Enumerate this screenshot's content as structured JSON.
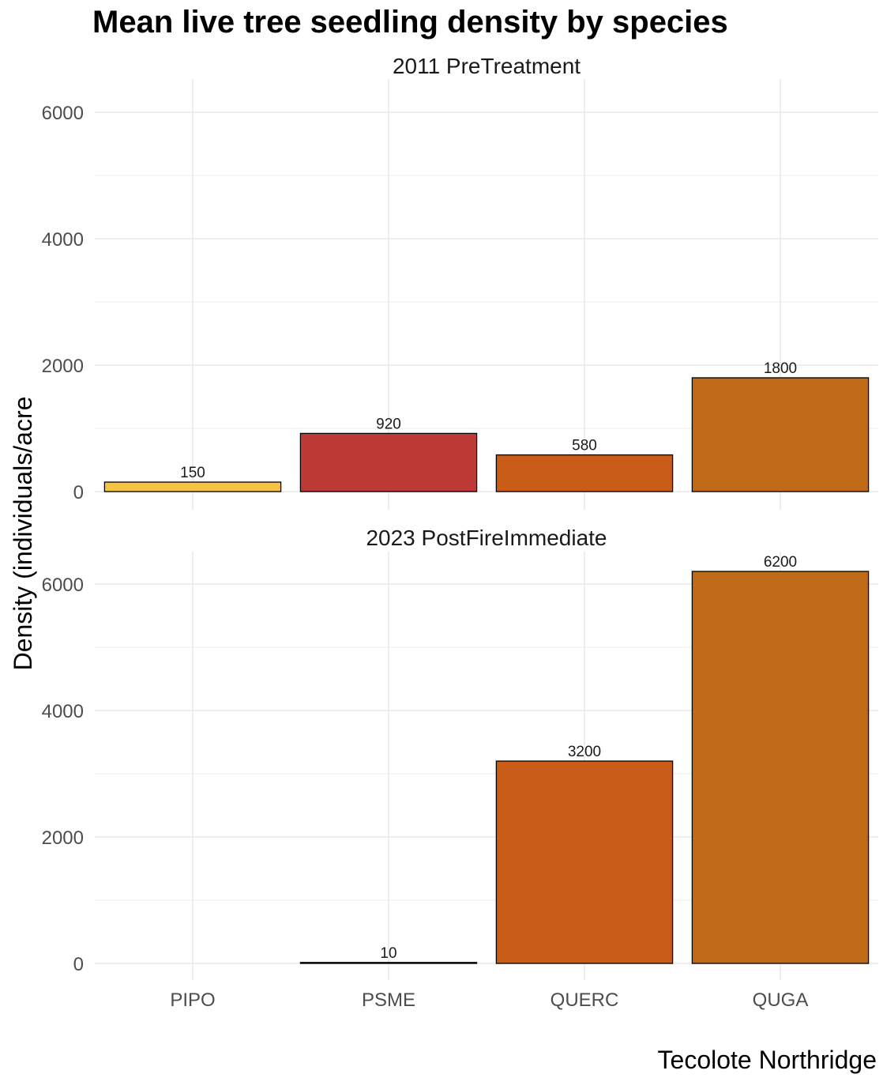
{
  "title": "Mean live tree seedling density by species",
  "chart_data": {
    "type": "bar",
    "title": "Mean live tree seedling density by species",
    "xlabel": "Tecolote Northridge",
    "ylabel": "Density (individuals/acre",
    "categories": [
      "PIPO",
      "PSME",
      "QUERC",
      "QUGA"
    ],
    "category_colors": [
      "#F6C343",
      "#BE3A36",
      "#C95D17",
      "#BE6A17"
    ],
    "ylim": [
      0,
      6500
    ],
    "yticks": [
      0,
      2000,
      4000,
      6000
    ],
    "ytick_labels": [
      "0",
      "2000",
      "4000",
      "6000"
    ],
    "grid": true,
    "legend": "none",
    "facets": [
      {
        "name": "2011 PreTreatment",
        "values": [
          150,
          920,
          580,
          1800
        ],
        "labels": [
          "150",
          "920",
          "580",
          "1800"
        ]
      },
      {
        "name": "2023 PostFireImmediate",
        "values": [
          0,
          10,
          3200,
          6200
        ],
        "labels": [
          "",
          "10",
          "3200",
          "6200"
        ]
      }
    ]
  }
}
